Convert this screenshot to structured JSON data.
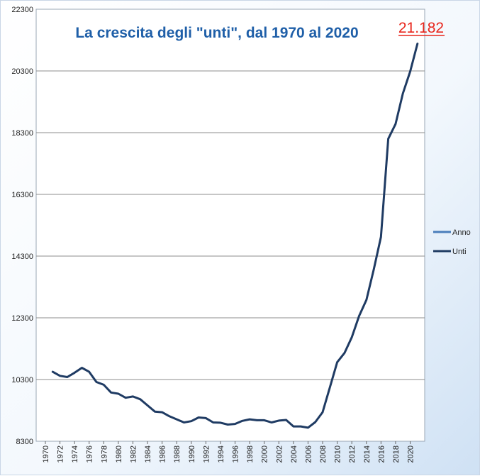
{
  "chart_data": {
    "type": "line",
    "title": "La crescita degli \"unti\", dal 1970 al 2020",
    "annotation": "21.182",
    "xlabel": "",
    "ylabel": "",
    "ylim": [
      8300,
      22300
    ],
    "y_ticks": [
      "8300",
      "10300",
      "12300",
      "14300",
      "16300",
      "18300",
      "20300",
      "22300"
    ],
    "x_ticks": [
      "1970",
      "1972",
      "1974",
      "1976",
      "1978",
      "1980",
      "1982",
      "1984",
      "1986",
      "1988",
      "1990",
      "1992",
      "1994",
      "1996",
      "1998",
      "2000",
      "2002",
      "2004",
      "2006",
      "2008",
      "2010",
      "2012",
      "2014",
      "2016",
      "2018",
      "2020"
    ],
    "grid": true,
    "legend_position": "right",
    "legend": [
      "Anno",
      "Unti"
    ],
    "series": [
      {
        "name": "Unti",
        "color": "#1f3b63",
        "x": [
          1971,
          1972,
          1973,
          1974,
          1975,
          1976,
          1977,
          1978,
          1979,
          1980,
          1981,
          1982,
          1983,
          1984,
          1985,
          1986,
          1987,
          1988,
          1989,
          1990,
          1991,
          1992,
          1993,
          1994,
          1995,
          1996,
          1997,
          1998,
          1999,
          2000,
          2001,
          2002,
          2003,
          2004,
          2005,
          2006,
          2007,
          2008,
          2009,
          2010,
          2011,
          2012,
          2013,
          2014,
          2015,
          2016,
          2017,
          2018,
          2019,
          2020,
          2021
        ],
        "y": [
          10550,
          10420,
          10380,
          10520,
          10680,
          10550,
          10220,
          10130,
          9880,
          9840,
          9710,
          9750,
          9660,
          9460,
          9260,
          9240,
          9110,
          9010,
          8910,
          8950,
          9070,
          9050,
          8910,
          8900,
          8840,
          8860,
          8960,
          9010,
          8980,
          8980,
          8910,
          8970,
          8990,
          8780,
          8780,
          8740,
          8920,
          9240,
          10050,
          10860,
          11160,
          11670,
          12360,
          12880,
          13860,
          14920,
          18100,
          18580,
          19570,
          20280,
          21182
        ]
      }
    ],
    "legend_colors": {
      "Anno": "#4a7ebb",
      "Unti": "#1f3b63"
    }
  }
}
